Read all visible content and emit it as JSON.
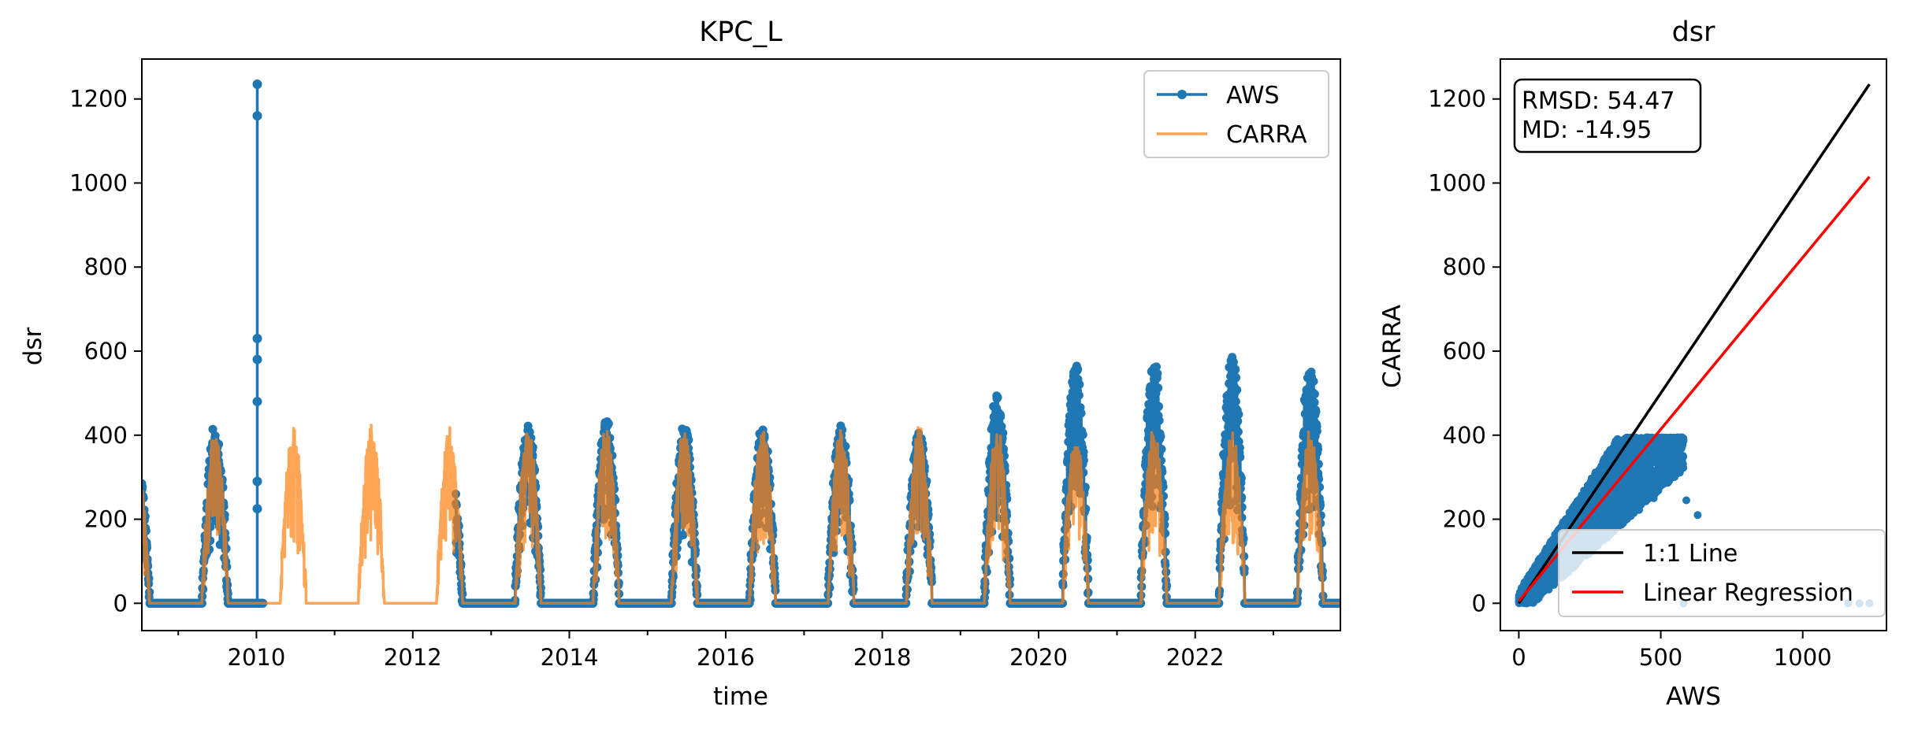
{
  "chart_data": [
    {
      "type": "line",
      "title": "KPC_L",
      "xlabel": "time",
      "ylabel": "dsr",
      "xlim": [
        "2008-07-15",
        "2023-11-10"
      ],
      "ylim": [
        -65,
        1295
      ],
      "xticks": [
        "2010",
        "2012",
        "2014",
        "2016",
        "2018",
        "2020",
        "2022"
      ],
      "yticks": [
        0,
        200,
        400,
        600,
        800,
        1000,
        1200
      ],
      "grid": false,
      "legend_position": "upper right",
      "series": [
        {
          "name": "AWS",
          "color": "#1f77b4",
          "marker": "circle",
          "gap": [
            "2010-02-01",
            "2012-07-20"
          ],
          "summer_peaks": [
            {
              "year": 2008,
              "peak": 340
            },
            {
              "year": 2009,
              "peak": 405
            },
            {
              "year": 2012,
              "peak": 335
            },
            {
              "year": 2013,
              "peak": 418
            },
            {
              "year": 2014,
              "peak": 420
            },
            {
              "year": 2015,
              "peak": 410
            },
            {
              "year": 2016,
              "peak": 410
            },
            {
              "year": 2017,
              "peak": 415
            },
            {
              "year": 2018,
              "peak": 405
            },
            {
              "year": 2019,
              "peak": 490
            },
            {
              "year": 2020,
              "peak": 560
            },
            {
              "year": 2021,
              "peak": 560
            },
            {
              "year": 2022,
              "peak": 572
            },
            {
              "year": 2023,
              "peak": 560
            }
          ],
          "spike": {
            "date": "2010-01-05",
            "values": [
              1235,
              1160,
              630,
              580,
              480,
              290,
              225
            ]
          }
        },
        {
          "name": "CARRA",
          "color": "#ff7f0e",
          "summer_peaks": [
            {
              "year": 2008,
              "peak": 320
            },
            {
              "year": 2009,
              "peak": 395
            },
            {
              "year": 2010,
              "peak": 395
            },
            {
              "year": 2011,
              "peak": 405
            },
            {
              "year": 2012,
              "peak": 395
            },
            {
              "year": 2013,
              "peak": 400
            },
            {
              "year": 2014,
              "peak": 400
            },
            {
              "year": 2015,
              "peak": 400
            },
            {
              "year": 2016,
              "peak": 400
            },
            {
              "year": 2017,
              "peak": 400
            },
            {
              "year": 2018,
              "peak": 400
            },
            {
              "year": 2019,
              "peak": 400
            },
            {
              "year": 2020,
              "peak": 395
            },
            {
              "year": 2021,
              "peak": 400
            },
            {
              "year": 2022,
              "peak": 400
            },
            {
              "year": 2023,
              "peak": 400
            }
          ]
        }
      ]
    },
    {
      "type": "scatter",
      "title": "dsr",
      "xlabel": "AWS",
      "ylabel": "CARRA",
      "xlim": [
        -65,
        1295
      ],
      "ylim": [
        -65,
        1295
      ],
      "xticks": [
        0,
        500,
        1000
      ],
      "yticks": [
        0,
        200,
        400,
        600,
        800,
        1000,
        1200
      ],
      "grid": false,
      "legend_position": "lower right",
      "stats": {
        "rmsd": "RMSD: 54.47",
        "md": "MD: -14.95"
      },
      "point_color": "#1f77b4",
      "outliers": [
        [
          475,
          250
        ],
        [
          590,
          245
        ],
        [
          630,
          210
        ],
        [
          1160,
          0
        ],
        [
          1235,
          0
        ],
        [
          1200,
          0
        ],
        [
          580,
          0
        ]
      ],
      "lines": [
        {
          "name": "1:1 Line",
          "color": "#000000",
          "points": [
            [
              0,
              0
            ],
            [
              1235,
              1235
            ]
          ]
        },
        {
          "name": "Linear Regression",
          "color": "#ff0000",
          "points": [
            [
              0,
              5
            ],
            [
              1235,
              1015
            ]
          ]
        }
      ]
    }
  ]
}
